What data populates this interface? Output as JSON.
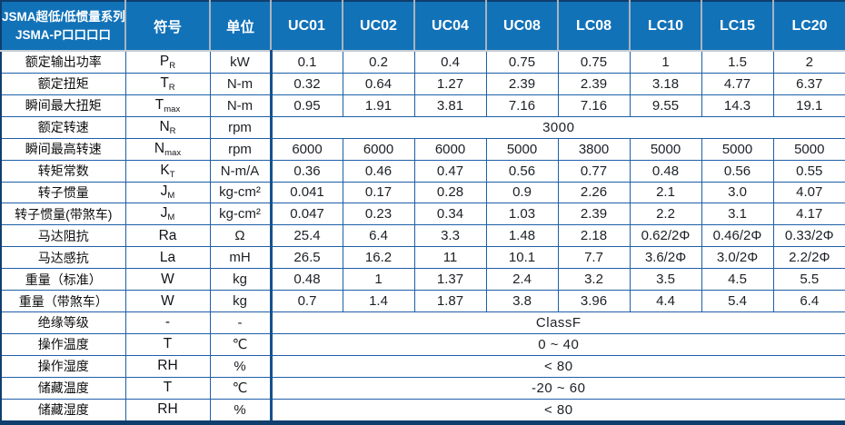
{
  "table": {
    "title_line1": "JSMA超低/低惯量系列",
    "title_line2": "JSMA-P口口口口",
    "header": {
      "symbol_label": "符号",
      "unit_label": "单位",
      "models": [
        "UC01",
        "UC02",
        "UC04",
        "UC08",
        "LC08",
        "LC10",
        "LC15",
        "LC20"
      ]
    },
    "rows": [
      {
        "label": "额定输出功率",
        "symbol": {
          "main": "P",
          "sub": "R"
        },
        "unit": "kW",
        "values": [
          "0.1",
          "0.2",
          "0.4",
          "0.75",
          "0.75",
          "1",
          "1.5",
          "2"
        ]
      },
      {
        "label": "额定扭矩",
        "symbol": {
          "main": "T",
          "sub": "R"
        },
        "unit": "N-m",
        "values": [
          "0.32",
          "0.64",
          "1.27",
          "2.39",
          "2.39",
          "3.18",
          "4.77",
          "6.37"
        ]
      },
      {
        "label": "瞬间最大扭矩",
        "symbol": {
          "main": "T",
          "sub": "max"
        },
        "unit": "N-m",
        "values": [
          "0.95",
          "1.91",
          "3.81",
          "7.16",
          "7.16",
          "9.55",
          "14.3",
          "19.1"
        ]
      },
      {
        "label": "额定转速",
        "symbol": {
          "main": "N",
          "sub": "R"
        },
        "unit": "rpm",
        "span": "3000"
      },
      {
        "label": "瞬间最高转速",
        "symbol": {
          "main": "N",
          "sub": "max"
        },
        "unit": "rpm",
        "values": [
          "6000",
          "6000",
          "6000",
          "5000",
          "3800",
          "5000",
          "5000",
          "5000"
        ]
      },
      {
        "label": "转矩常数",
        "symbol": {
          "main": "K",
          "sub": "T"
        },
        "unit": "N-m/A",
        "values": [
          "0.36",
          "0.46",
          "0.47",
          "0.56",
          "0.77",
          "0.48",
          "0.56",
          "0.55"
        ]
      },
      {
        "label": "转子惯量",
        "symbol": {
          "main": "J",
          "sub": "M"
        },
        "unit": "kg-cm²",
        "values": [
          "0.041",
          "0.17",
          "0.28",
          "0.9",
          "2.26",
          "2.1",
          "3.0",
          "4.07"
        ]
      },
      {
        "label": "转子惯量(带煞车)",
        "symbol": {
          "main": "J",
          "sub": "M"
        },
        "unit": "kg-cm²",
        "values": [
          "0.047",
          "0.23",
          "0.34",
          "1.03",
          "2.39",
          "2.2",
          "3.1",
          "4.17"
        ]
      },
      {
        "label": "马达阻抗",
        "symbol": {
          "main": "Ra",
          "sub": ""
        },
        "unit": "Ω",
        "values": [
          "25.4",
          "6.4",
          "3.3",
          "1.48",
          "2.18",
          "0.62/2Φ",
          "0.46/2Φ",
          "0.33/2Φ"
        ]
      },
      {
        "label": "马达感抗",
        "symbol": {
          "main": "La",
          "sub": ""
        },
        "unit": "mH",
        "values": [
          "26.5",
          "16.2",
          "11",
          "10.1",
          "7.7",
          "3.6/2Φ",
          "3.0/2Φ",
          "2.2/2Φ"
        ]
      },
      {
        "label": "重量（标准）",
        "symbol": {
          "main": "W",
          "sub": ""
        },
        "unit": "kg",
        "values": [
          "0.48",
          "1",
          "1.37",
          "2.4",
          "3.2",
          "3.5",
          "4.5",
          "5.5"
        ]
      },
      {
        "label": "重量（带煞车）",
        "symbol": {
          "main": "W",
          "sub": ""
        },
        "unit": "kg",
        "values": [
          "0.7",
          "1.4",
          "1.87",
          "3.8",
          "3.96",
          "4.4",
          "5.4",
          "6.4"
        ]
      },
      {
        "label": "绝缘等级",
        "symbol": {
          "main": "-",
          "sub": ""
        },
        "unit": "-",
        "span": "ClassF"
      },
      {
        "label": "操作温度",
        "symbol": {
          "main": "T",
          "sub": ""
        },
        "unit": "℃",
        "span": "0 ~ 40"
      },
      {
        "label": "操作湿度",
        "symbol": {
          "main": "RH",
          "sub": ""
        },
        "unit": "%",
        "span": "< 80"
      },
      {
        "label": "储藏温度",
        "symbol": {
          "main": "T",
          "sub": ""
        },
        "unit": "℃",
        "span": "-20 ~ 60"
      },
      {
        "label": "储藏湿度",
        "symbol": {
          "main": "RH",
          "sub": ""
        },
        "unit": "%",
        "span": "< 80"
      }
    ],
    "colors": {
      "header_bg": "#1272b8",
      "header_text": "#ffffff",
      "header_divider": "#a9b3bd",
      "grid_line": "#1d5fa8",
      "outer_border": "#0f3e6e",
      "body_text": "#1c2025"
    }
  }
}
